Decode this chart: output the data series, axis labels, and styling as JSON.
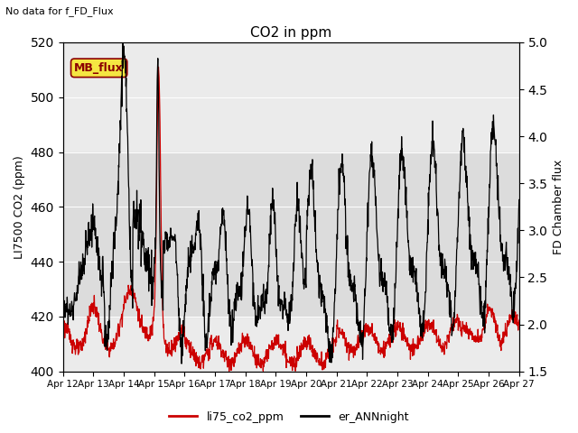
{
  "title": "CO2 in ppm",
  "top_left_text": "No data for f_FD_Flux",
  "ylabel_left": "LI7500 CO2 (ppm)",
  "ylabel_right": "FD Chamber flux",
  "ylim_left": [
    400,
    520
  ],
  "ylim_right": [
    1.5,
    5.0
  ],
  "yticks_left": [
    400,
    420,
    440,
    460,
    480,
    500,
    520
  ],
  "yticks_right": [
    1.5,
    2.0,
    2.5,
    3.0,
    3.5,
    4.0,
    4.5,
    5.0
  ],
  "shade_color_dark": "#dcdcdc",
  "shade_color_light": "#ebebeb",
  "bg_color": "#ebebeb",
  "legend_label_red": "li75_co2_ppm",
  "legend_label_black": "er_ANNnight",
  "mb_flux_box_color": "#f5e642",
  "mb_flux_text": "MB_flux",
  "line_color_red": "#cc0000",
  "line_color_black": "#000000",
  "xticklabels": [
    "Apr 12",
    "Apr 13",
    "Apr 14",
    "Apr 15",
    "Apr 16",
    "Apr 17",
    "Apr 18",
    "Apr 19",
    "Apr 20",
    "Apr 21",
    "Apr 22",
    "Apr 23",
    "Apr 24",
    "Apr 25",
    "Apr 26",
    "Apr 27"
  ]
}
